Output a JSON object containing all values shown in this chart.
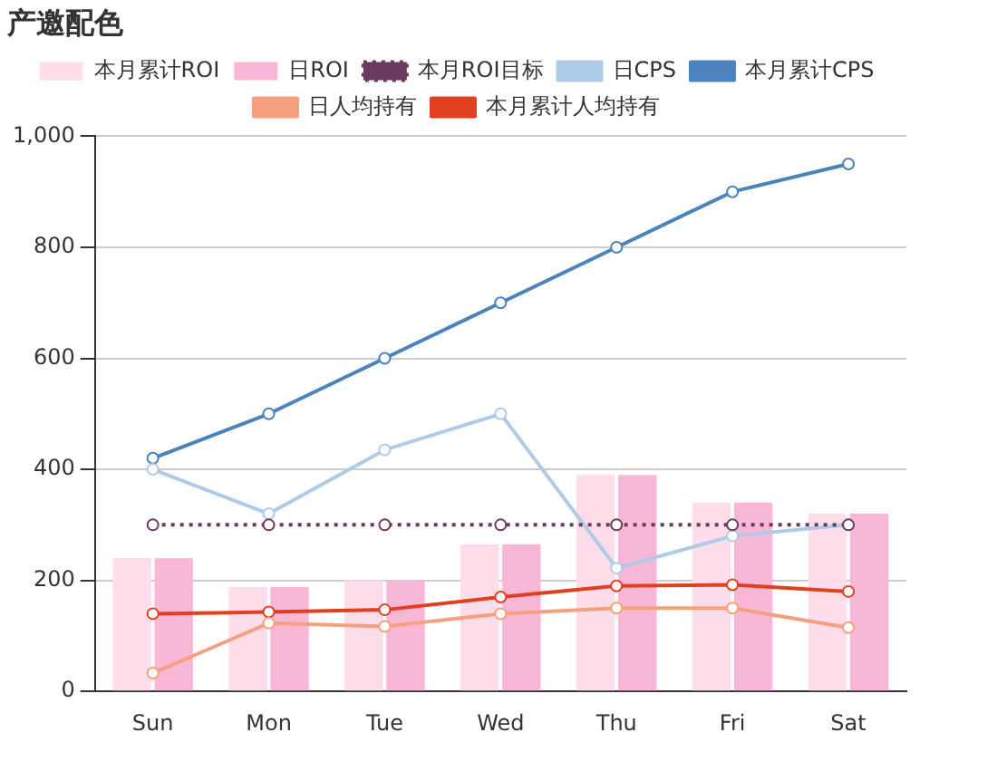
{
  "chart_data": {
    "type": "bar",
    "title": "产邀配色",
    "categories": [
      "Sun",
      "Mon",
      "Tue",
      "Wed",
      "Thu",
      "Fri",
      "Sat"
    ],
    "series": [
      {
        "name": "本月累计ROI",
        "color": "#fddde9",
        "values": [
          240,
          188,
          200,
          265,
          390,
          340,
          320
        ]
      },
      {
        "name": "日ROI",
        "color": "#f9b7d7",
        "values": [
          240,
          188,
          200,
          265,
          390,
          340,
          320
        ]
      },
      {
        "name": "本月ROI目标",
        "type": "line",
        "color": "#6b3a5f",
        "line_style": "dotted",
        "values": [
          300,
          300,
          300,
          300,
          300,
          300,
          300
        ]
      },
      {
        "name": "日CPS",
        "type": "line",
        "color": "#aecbe8",
        "values": [
          400,
          320,
          435,
          500,
          222,
          280,
          300
        ]
      },
      {
        "name": "本月累计CPS",
        "type": "line",
        "color": "#4a83bd",
        "values": [
          420,
          500,
          600,
          700,
          800,
          900,
          950
        ]
      },
      {
        "name": "日人均持有",
        "type": "line",
        "color": "#f7a080",
        "values": [
          33,
          123,
          117,
          140,
          150,
          150,
          115
        ]
      },
      {
        "name": "本月累计人均持有",
        "type": "line",
        "color": "#e0401f",
        "values": [
          140,
          143,
          147,
          170,
          190,
          192,
          180
        ]
      }
    ],
    "ylim": [
      0,
      1000
    ],
    "yticks": [
      0,
      {
        "value": 200,
        "label": "200"
      },
      {
        "value": 400,
        "label": "400"
      },
      {
        "value": 600,
        "label": "600"
      },
      {
        "value": 800,
        "label": "800"
      },
      {
        "value": 1000,
        "label": "1,000"
      }
    ],
    "grid": "y",
    "legend": "top",
    "marker": "circle"
  }
}
